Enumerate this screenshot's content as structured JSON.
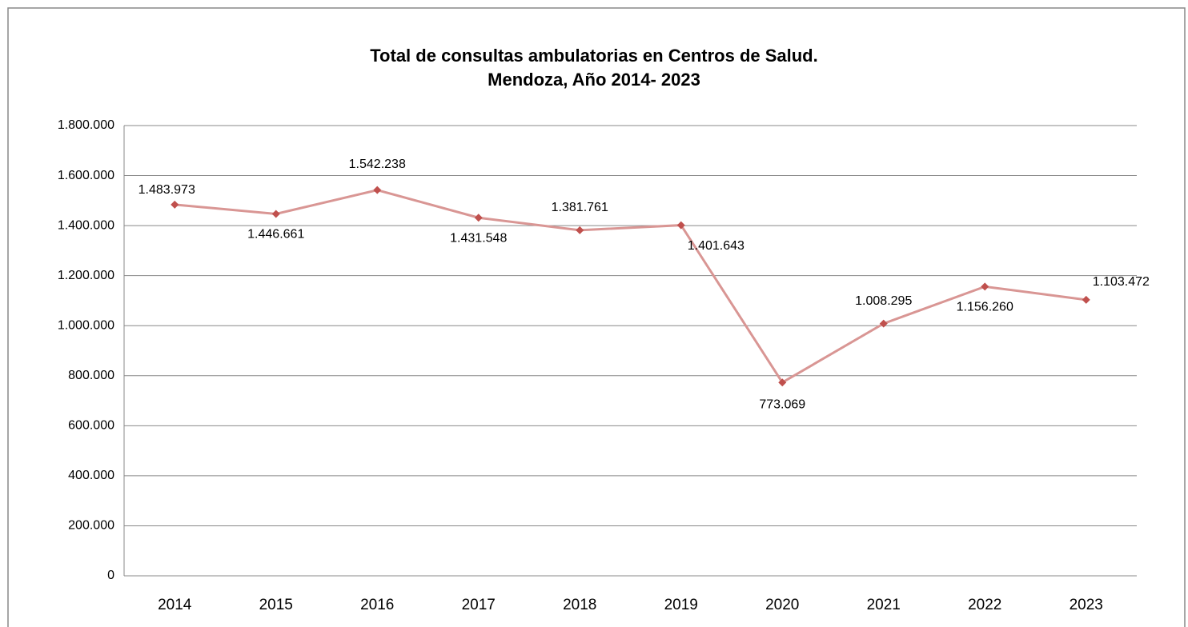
{
  "chart_data": {
    "type": "line",
    "title": [
      "Total de consultas ambulatorias en Centros de Salud.",
      "Mendoza, Año 2014- 2023"
    ],
    "categories": [
      "2014",
      "2015",
      "2016",
      "2017",
      "2018",
      "2019",
      "2020",
      "2021",
      "2022",
      "2023"
    ],
    "series": [
      {
        "color": "#d99694",
        "marker_color": "#c0504d",
        "values": [
          1483973,
          1446661,
          1542238,
          1431548,
          1381761,
          1401643,
          773069,
          1008295,
          1156260,
          1103472
        ],
        "value_labels": [
          "1.483.973",
          "1.446.661",
          "1.542.238",
          "1.431.548",
          "1.381.761",
          "1.401.643",
          "773.069",
          "1.008.295",
          "1.156.260",
          "1.103.472"
        ]
      }
    ],
    "ylim": [
      0,
      1800000
    ],
    "yticks": [
      0,
      {
        "value": 200000,
        "label": "200.000"
      },
      {
        "value": 400000,
        "label": "400.000"
      },
      {
        "value": 600000,
        "label": "600.000"
      },
      {
        "value": 800000,
        "label": "800.000"
      },
      {
        "value": 1000000,
        "label": "1.000.000"
      },
      {
        "value": 1200000,
        "label": "1.200.000"
      },
      {
        "value": 1400000,
        "label": "1.400.000"
      },
      {
        "value": 1600000,
        "label": "1.600.000"
      },
      {
        "value": 1800000,
        "label": "1.800.000"
      }
    ],
    "grid": true
  }
}
